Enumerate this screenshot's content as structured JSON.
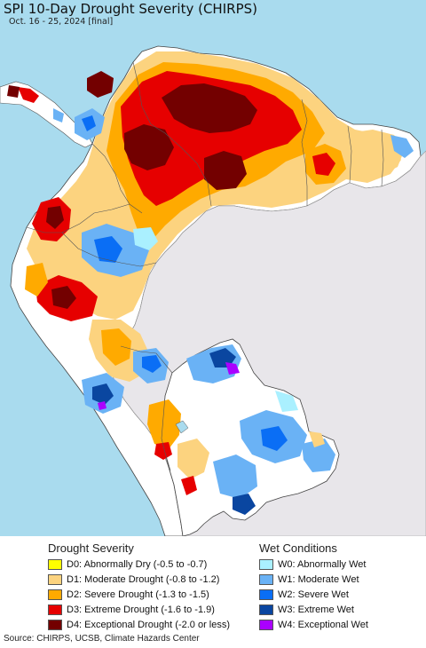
{
  "title": "SPI 10-Day Drought Severity (CHIRPS)",
  "subtitle": "Oct. 16 - 25, 2024 [final]",
  "colors": {
    "ocean": "#a9dbee",
    "outside_land": "#e8e6ea",
    "no_anomaly": "#ffffff",
    "d0": "#ffff00",
    "d1": "#fcd37f",
    "d2": "#ffaa00",
    "d3": "#e60000",
    "d4": "#730000",
    "w0": "#aaf0ff",
    "w1": "#6ab2f5",
    "w2": "#0a6ef5",
    "w3": "#0a46a0",
    "w4": "#aa00ff"
  },
  "legend": {
    "drought_heading": "Drought Severity",
    "wet_heading": "Wet Conditions",
    "drought": [
      {
        "label": "D0: Abnormally Dry (-0.5 to -0.7)",
        "color": "#ffff00"
      },
      {
        "label": "D1: Moderate Drought (-0.8 to -1.2)",
        "color": "#fcd37f"
      },
      {
        "label": "D2: Severe Drought (-1.3 to -1.5)",
        "color": "#ffaa00"
      },
      {
        "label": "D3: Extreme Drought (-1.6 to -1.9)",
        "color": "#e60000"
      },
      {
        "label": "D4: Exceptional Drought (-2.0 or less)",
        "color": "#730000"
      }
    ],
    "wet": [
      {
        "label": "W0: Abnormally Wet",
        "color": "#aaf0ff"
      },
      {
        "label": "W1: Moderate Wet",
        "color": "#6ab2f5"
      },
      {
        "label": "W2: Severe Wet",
        "color": "#0a6ef5"
      },
      {
        "label": "W3: Extreme Wet",
        "color": "#0a46a0"
      },
      {
        "label": "W4: Exceptional Wet",
        "color": "#aa00ff"
      }
    ]
  },
  "source": "Source: CHIRPS, UCSB, Climate Hazards Center"
}
